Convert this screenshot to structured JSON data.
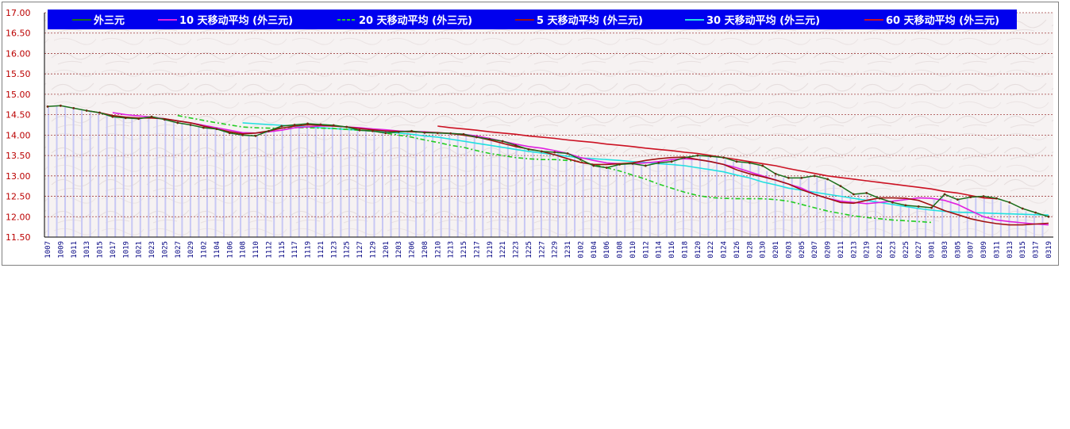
{
  "chart_data": {
    "type": "line",
    "title": "",
    "xlabel": "",
    "ylabel": "",
    "ylim": [
      11.5,
      17.0
    ],
    "y_ticks": [
      "17.00",
      "16.50",
      "16.00",
      "15.50",
      "15.00",
      "14.50",
      "14.00",
      "13.50",
      "13.00",
      "12.50",
      "12.00",
      "11.50"
    ],
    "y_tick_values": [
      17.0,
      16.5,
      16.0,
      15.5,
      15.0,
      14.5,
      14.0,
      13.5,
      13.0,
      12.5,
      12.0,
      11.5
    ],
    "grid": true,
    "legend_position": "top",
    "x_tick_labels": [
      "1007",
      "1009",
      "1011",
      "1013",
      "1015",
      "1017",
      "1019",
      "1021",
      "1023",
      "1025",
      "1027",
      "1029",
      "1102",
      "1104",
      "1106",
      "1108",
      "1110",
      "1112",
      "1115",
      "1117",
      "1119",
      "1121",
      "1123",
      "1125",
      "1127",
      "1129",
      "1201",
      "1203",
      "1206",
      "1208",
      "1210",
      "1213",
      "1215",
      "1217",
      "1219",
      "1221",
      "1223",
      "1225",
      "1227",
      "1229",
      "1231",
      "0102",
      "0104",
      "0106",
      "0108",
      "0110",
      "0112",
      "0114",
      "0116",
      "0118",
      "0120",
      "0122",
      "0124",
      "0126",
      "0128",
      "0130",
      "0201",
      "0203",
      "0205",
      "0207",
      "0209",
      "0211",
      "0213",
      "0219",
      "0221",
      "0223",
      "0225",
      "0227",
      "0301",
      "0303",
      "0305",
      "0307",
      "0309",
      "0311",
      "0313",
      "0315",
      "0317",
      "0319"
    ],
    "series": [
      {
        "name": "外三元",
        "color": "#1a6e1a",
        "start_index": 0,
        "values": [
          14.7,
          14.72,
          14.66,
          14.6,
          14.55,
          14.45,
          14.42,
          14.4,
          14.45,
          14.38,
          14.3,
          14.25,
          14.18,
          14.15,
          14.05,
          14.0,
          13.98,
          14.1,
          14.22,
          14.25,
          14.28,
          14.26,
          14.24,
          14.2,
          14.12,
          14.1,
          14.05,
          14.08,
          14.1,
          14.06,
          14.05,
          14.04,
          14.02,
          13.95,
          13.9,
          13.85,
          13.75,
          13.65,
          13.6,
          13.58,
          13.55,
          13.4,
          13.25,
          13.2,
          13.28,
          13.3,
          13.25,
          13.32,
          13.35,
          13.45,
          13.5,
          13.48,
          13.45,
          13.35,
          13.32,
          13.25,
          13.05,
          12.95,
          12.95,
          13.0,
          12.92,
          12.75,
          12.55,
          12.58,
          12.45,
          12.35,
          12.28,
          12.25,
          12.22,
          12.55,
          12.42,
          12.48,
          12.5,
          12.45,
          12.35,
          12.2,
          12.1,
          12.0
        ]
      },
      {
        "name": "10 天移动平均 (外三元)",
        "color": "#e020e0",
        "start_index": 5,
        "values": [
          14.55,
          14.5,
          14.47,
          14.44,
          14.4,
          14.35,
          14.3,
          14.24,
          14.18,
          14.12,
          14.06,
          14.05,
          14.08,
          14.12,
          14.18,
          14.2,
          14.22,
          14.22,
          14.2,
          14.18,
          14.15,
          14.13,
          14.1,
          14.09,
          14.08,
          14.06,
          14.04,
          14.02,
          13.98,
          13.92,
          13.85,
          13.78,
          13.72,
          13.68,
          13.62,
          13.55,
          13.45,
          13.38,
          13.32,
          13.3,
          13.3,
          13.32,
          13.35,
          13.4,
          13.42,
          13.4,
          13.35,
          13.28,
          13.2,
          13.1,
          13.0,
          12.9,
          12.8,
          12.7,
          12.55,
          12.45,
          12.38,
          12.35,
          12.32,
          12.35,
          12.38,
          12.42,
          12.46,
          12.45,
          12.4,
          12.3,
          12.15,
          12.0,
          11.92,
          11.88,
          11.85,
          11.82,
          11.8
        ]
      },
      {
        "name": "20 天移动平均 (外三元)",
        "color": "#22cc22",
        "dashed": true,
        "start_index": 10,
        "values": [
          14.48,
          14.42,
          14.36,
          14.3,
          14.25,
          14.2,
          14.18,
          14.17,
          14.17,
          14.18,
          14.18,
          14.17,
          14.16,
          14.14,
          14.12,
          14.1,
          14.05,
          14.0,
          13.95,
          13.88,
          13.82,
          13.75,
          13.7,
          13.62,
          13.55,
          13.5,
          13.45,
          13.42,
          13.4,
          13.4,
          13.38,
          13.35,
          13.28,
          13.2,
          13.12,
          13.02,
          12.92,
          12.8,
          12.7,
          12.6,
          12.52,
          12.47,
          12.45,
          12.44,
          12.44,
          12.44,
          12.42,
          12.38,
          12.3,
          12.22,
          12.14,
          12.08,
          12.02,
          11.98,
          11.95,
          11.92,
          11.9,
          11.88,
          11.86
        ]
      },
      {
        "name": "5 天移动平均 (外三元)",
        "color": "#a01010",
        "start_index": 3,
        "values": [
          14.6,
          14.55,
          14.48,
          14.44,
          14.42,
          14.42,
          14.4,
          14.35,
          14.3,
          14.22,
          14.15,
          14.08,
          14.03,
          14.05,
          14.1,
          14.17,
          14.22,
          14.25,
          14.24,
          14.22,
          14.2,
          14.16,
          14.13,
          14.1,
          14.09,
          14.08,
          14.07,
          14.06,
          14.04,
          14.0,
          13.95,
          13.88,
          13.8,
          13.72,
          13.66,
          13.6,
          13.52,
          13.42,
          13.33,
          13.28,
          13.28,
          13.3,
          13.32,
          13.38,
          13.42,
          13.45,
          13.46,
          13.4,
          13.35,
          13.28,
          13.15,
          13.05,
          12.98,
          12.9,
          12.8,
          12.66,
          12.55,
          12.45,
          12.35,
          12.33,
          12.4,
          12.46,
          12.46,
          12.45,
          12.4,
          12.28,
          12.15,
          12.05,
          11.95,
          11.88,
          11.83,
          11.8,
          11.8,
          11.82,
          11.84
        ]
      },
      {
        "name": "30 天移动平均 (外三元)",
        "color": "#22e0e0",
        "start_index": 15,
        "values": [
          14.3,
          14.28,
          14.26,
          14.24,
          14.22,
          14.2,
          14.18,
          14.16,
          14.14,
          14.12,
          14.1,
          14.08,
          14.05,
          14.02,
          13.98,
          13.95,
          13.9,
          13.85,
          13.8,
          13.75,
          13.7,
          13.65,
          13.6,
          13.56,
          13.52,
          13.48,
          13.44,
          13.42,
          13.4,
          13.38,
          13.35,
          13.33,
          13.3,
          13.28,
          13.25,
          13.2,
          13.15,
          13.1,
          13.02,
          12.95,
          12.85,
          12.78,
          12.7,
          12.65,
          12.6,
          12.55,
          12.5,
          12.45,
          12.4,
          12.35,
          12.3,
          12.25,
          12.2,
          12.16,
          12.13,
          12.11,
          12.1,
          12.09,
          12.08,
          12.07,
          12.06,
          12.05,
          12.04
        ]
      },
      {
        "name": "60 天移动平均 (外三元)",
        "color": "#cc1122",
        "start_index": 30,
        "values": [
          14.22,
          14.18,
          14.15,
          14.12,
          14.08,
          14.05,
          14.02,
          13.98,
          13.95,
          13.92,
          13.88,
          13.85,
          13.82,
          13.78,
          13.75,
          13.72,
          13.68,
          13.65,
          13.62,
          13.58,
          13.55,
          13.5,
          13.45,
          13.4,
          13.35,
          13.3,
          13.25,
          13.18,
          13.12,
          13.06,
          13.0,
          12.96,
          12.92,
          12.88,
          12.84,
          12.8,
          12.76,
          12.72,
          12.68,
          12.62,
          12.58,
          12.52,
          12.46,
          12.44
        ]
      }
    ]
  }
}
